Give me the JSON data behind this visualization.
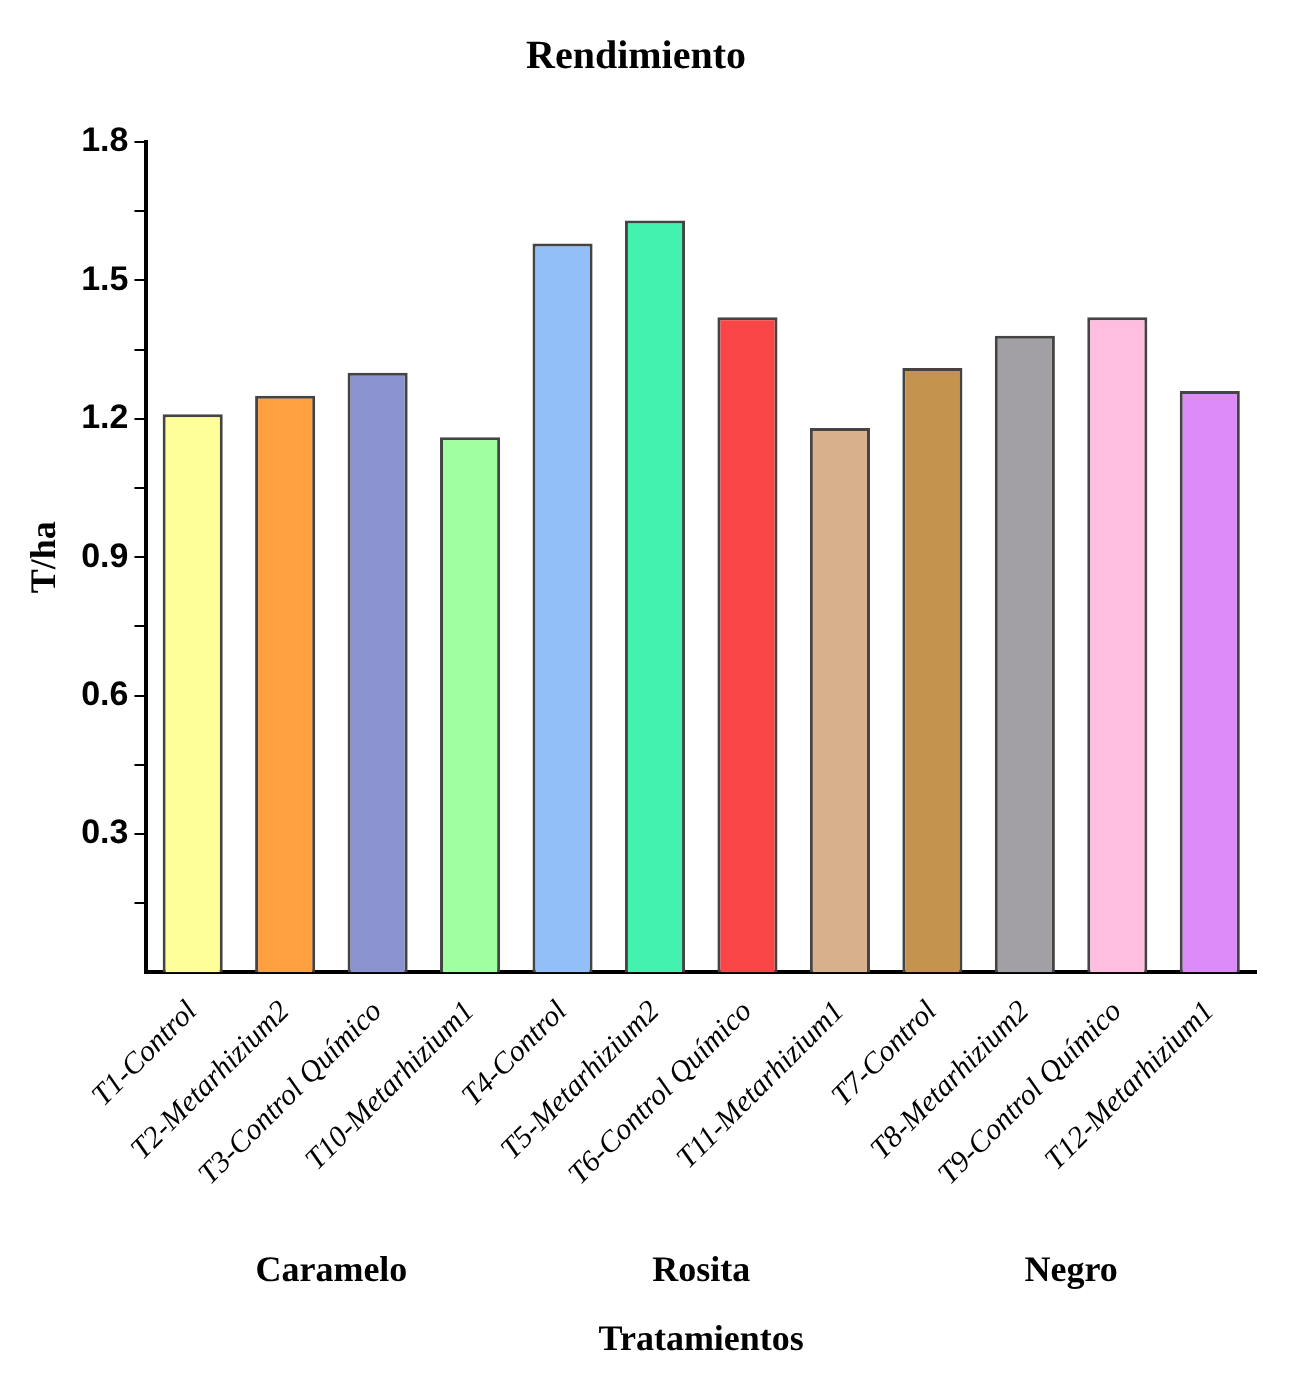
{
  "chart_data": {
    "type": "bar",
    "title": "Rendimiento",
    "xlabel": "Tratamientos",
    "ylabel": "T/ha",
    "categories": [
      "T1-Control",
      "T2-Metarhizium2",
      "T3-Control Químico",
      "T10-Metarhizium1",
      "T4-Control",
      "T5-Metarhizium2",
      "T6-Control Químico",
      "T11-Metarhizium1",
      "T7-Control",
      "T8-Metarhizium2",
      "T9-Control Químico",
      "T12-Metarhizium1"
    ],
    "values": [
      1.21,
      1.25,
      1.3,
      1.16,
      1.58,
      1.63,
      1.42,
      1.18,
      1.31,
      1.38,
      1.42,
      1.26
    ],
    "colors": [
      "#ffff99",
      "#ff9f40",
      "#8b93d0",
      "#a0ff9f",
      "#92bff7",
      "#44f2b0",
      "#f94545",
      "#d9b08c",
      "#c4944f",
      "#a2a0a5",
      "#ffbde0",
      "#dd8bf7"
    ],
    "annotations": [
      "Caramelo",
      "Rosita",
      "Negro"
    ],
    "ylim": [
      0,
      1.8
    ],
    "yticks": [
      {
        "value": 0.15,
        "label": null
      },
      0.3,
      {
        "value": 0.45,
        "label": null
      },
      0.6,
      {
        "value": 0.75,
        "label": null
      },
      0.9,
      {
        "value": 1.05,
        "label": null
      },
      1.2,
      {
        "value": 1.35,
        "label": null
      },
      1.5,
      {
        "value": 1.65,
        "label": null
      },
      1.8
    ],
    "grid": false,
    "legend": false
  }
}
